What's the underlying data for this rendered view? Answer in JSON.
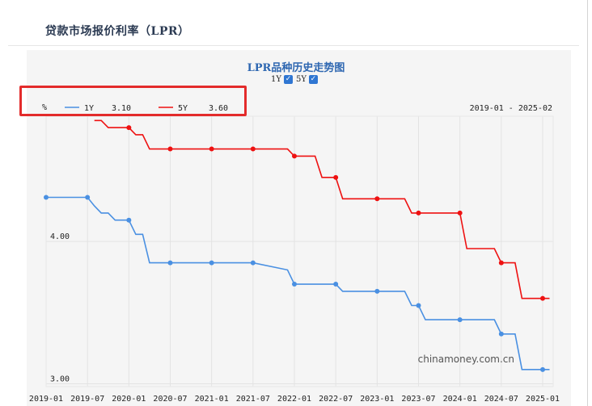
{
  "page": {
    "title": "贷款市场报价利率（LPR）"
  },
  "chart_data": {
    "type": "line",
    "title": "LPR品种历史走势图",
    "ylabel": "%",
    "date_range_label": "2019-01 - 2025-02",
    "watermark": "chinamoney.com.cn",
    "series_toggles": [
      {
        "label": "1Y",
        "checked": true
      },
      {
        "label": "5Y",
        "checked": true
      }
    ],
    "legend": [
      {
        "name": "1Y",
        "value": "3.10",
        "color": "#4a90e2"
      },
      {
        "name": "5Y",
        "value": "3.60",
        "color": "#ee1111"
      }
    ],
    "x_tick_labels": [
      "2019-01",
      "2019-07",
      "2020-01",
      "2020-07",
      "2021-01",
      "2021-07",
      "2022-01",
      "2022-07",
      "2023-01",
      "2023-07",
      "2024-01",
      "2024-07",
      "2025-01"
    ],
    "y_tick_labels": [
      "3.00",
      "4.00"
    ],
    "ylim": [
      2.98,
      4.88
    ],
    "grid": true,
    "series": [
      {
        "name": "1Y",
        "color": "#4a90e2",
        "points": [
          [
            "2019-01",
            4.31
          ],
          [
            "2019-07",
            4.31
          ],
          [
            "2019-08",
            4.25
          ],
          [
            "2019-09",
            4.2
          ],
          [
            "2019-10",
            4.2
          ],
          [
            "2019-11",
            4.15
          ],
          [
            "2019-12",
            4.15
          ],
          [
            "2020-01",
            4.15
          ],
          [
            "2020-02",
            4.05
          ],
          [
            "2020-03",
            4.05
          ],
          [
            "2020-04",
            3.85
          ],
          [
            "2020-07",
            3.85
          ],
          [
            "2021-01",
            3.85
          ],
          [
            "2021-07",
            3.85
          ],
          [
            "2021-12",
            3.8
          ],
          [
            "2022-01",
            3.7
          ],
          [
            "2022-07",
            3.7
          ],
          [
            "2022-08",
            3.65
          ],
          [
            "2023-01",
            3.65
          ],
          [
            "2023-05",
            3.65
          ],
          [
            "2023-06",
            3.55
          ],
          [
            "2023-07",
            3.55
          ],
          [
            "2023-08",
            3.45
          ],
          [
            "2024-01",
            3.45
          ],
          [
            "2024-06",
            3.45
          ],
          [
            "2024-07",
            3.35
          ],
          [
            "2024-09",
            3.35
          ],
          [
            "2024-10",
            3.1
          ],
          [
            "2025-01",
            3.1
          ],
          [
            "2025-02",
            3.1
          ]
        ],
        "markers": [
          "2019-01",
          "2019-07",
          "2020-01",
          "2020-07",
          "2021-01",
          "2021-07",
          "2022-01",
          "2022-07",
          "2023-01",
          "2023-07",
          "2024-01",
          "2024-07",
          "2025-01"
        ]
      },
      {
        "name": "5Y",
        "color": "#ee1111",
        "points": [
          [
            "2019-08",
            4.85
          ],
          [
            "2019-09",
            4.85
          ],
          [
            "2019-10",
            4.8
          ],
          [
            "2019-11",
            4.8
          ],
          [
            "2019-12",
            4.8
          ],
          [
            "2020-01",
            4.8
          ],
          [
            "2020-02",
            4.75
          ],
          [
            "2020-03",
            4.75
          ],
          [
            "2020-04",
            4.65
          ],
          [
            "2020-07",
            4.65
          ],
          [
            "2021-01",
            4.65
          ],
          [
            "2021-07",
            4.65
          ],
          [
            "2021-12",
            4.65
          ],
          [
            "2022-01",
            4.6
          ],
          [
            "2022-04",
            4.6
          ],
          [
            "2022-05",
            4.45
          ],
          [
            "2022-07",
            4.45
          ],
          [
            "2022-08",
            4.3
          ],
          [
            "2023-01",
            4.3
          ],
          [
            "2023-05",
            4.3
          ],
          [
            "2023-06",
            4.2
          ],
          [
            "2023-07",
            4.2
          ],
          [
            "2024-01",
            4.2
          ],
          [
            "2024-02",
            3.95
          ],
          [
            "2024-06",
            3.95
          ],
          [
            "2024-07",
            3.85
          ],
          [
            "2024-09",
            3.85
          ],
          [
            "2024-10",
            3.6
          ],
          [
            "2025-01",
            3.6
          ],
          [
            "2025-02",
            3.6
          ]
        ],
        "markers": [
          "2020-01",
          "2020-07",
          "2021-01",
          "2021-07",
          "2022-01",
          "2022-07",
          "2023-01",
          "2023-07",
          "2024-01",
          "2024-07",
          "2025-01"
        ]
      }
    ]
  }
}
